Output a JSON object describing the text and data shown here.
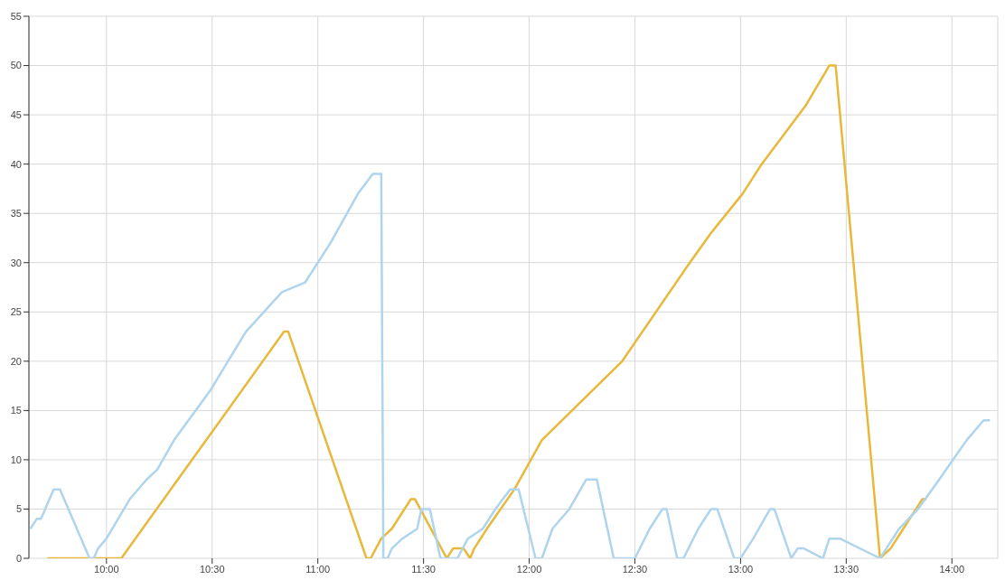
{
  "chart_data": {
    "type": "line",
    "xlim": [
      9.633,
      14.217
    ],
    "xticks": [
      {
        "value": 10,
        "label": "10:00"
      },
      {
        "value": 10.5,
        "label": "10:30"
      },
      {
        "value": 11,
        "label": "11:00"
      },
      {
        "value": 11.5,
        "label": "11:30"
      },
      {
        "value": 12,
        "label": "12:00"
      },
      {
        "value": 12.5,
        "label": "12:30"
      },
      {
        "value": 13,
        "label": "13:00"
      },
      {
        "value": 13.5,
        "label": "13:30"
      },
      {
        "value": 14,
        "label": "14:00"
      }
    ],
    "ylim": [
      0,
      55
    ],
    "yticks": [
      0,
      5,
      10,
      15,
      20,
      25,
      30,
      35,
      40,
      45,
      50,
      55
    ],
    "grid": true,
    "marker": "none",
    "line_style": "solid",
    "series": [
      {
        "color": "#e8b83a",
        "x": [
          9.72,
          10.07,
          10.84,
          10.86,
          11.23,
          11.25,
          11.3,
          11.35,
          11.41,
          11.44,
          11.46,
          11.61,
          11.64,
          11.69,
          11.72,
          11.74,
          11.8,
          11.93,
          12.06,
          12.44,
          12.76,
          12.86,
          13.01,
          13.1,
          13.31,
          13.42,
          13.45,
          13.66,
          13.71,
          13.77,
          13.86,
          13.88
        ],
        "values": [
          0,
          0,
          23,
          23,
          0,
          0,
          2,
          3,
          5,
          6,
          6,
          0,
          1,
          1,
          0,
          1,
          3,
          7,
          12,
          20,
          30,
          33,
          37,
          40,
          46,
          50,
          50,
          0,
          1,
          3,
          6,
          6
        ]
      },
      {
        "color": "#aed4ee",
        "x": [
          9.64,
          9.67,
          9.69,
          9.71,
          9.75,
          9.78,
          9.92,
          9.94,
          9.96,
          10.0,
          10.11,
          10.19,
          10.24,
          10.32,
          10.49,
          10.66,
          10.83,
          10.94,
          11.06,
          11.19,
          11.26,
          11.3,
          11.31,
          11.33,
          11.35,
          11.4,
          11.47,
          11.49,
          11.53,
          11.58,
          11.66,
          11.71,
          11.78,
          11.84,
          11.91,
          11.95,
          12.03,
          12.06,
          12.11,
          12.19,
          12.27,
          12.32,
          12.4,
          12.5,
          12.57,
          12.63,
          12.65,
          12.7,
          12.73,
          12.8,
          12.86,
          12.89,
          12.97,
          13.0,
          13.06,
          13.14,
          13.16,
          13.24,
          13.27,
          13.3,
          13.39,
          13.42,
          13.47,
          13.66,
          13.69,
          13.75,
          13.84,
          13.94,
          14.07,
          14.15,
          14.18
        ],
        "values": [
          3,
          4,
          4,
          5,
          7,
          7,
          0,
          0,
          1,
          2,
          6,
          8,
          9,
          12,
          17,
          23,
          27,
          28,
          32,
          37,
          39,
          39,
          0,
          0,
          1,
          2,
          3,
          5,
          5,
          0,
          0,
          2,
          3,
          5,
          7,
          7,
          0,
          0,
          3,
          5,
          8,
          8,
          0,
          0,
          3,
          5,
          5,
          0,
          0,
          3,
          5,
          5,
          0,
          0,
          2,
          5,
          5,
          0,
          1,
          1,
          0,
          2,
          2,
          0,
          1,
          3,
          5,
          8,
          12,
          14,
          14
        ]
      }
    ]
  }
}
